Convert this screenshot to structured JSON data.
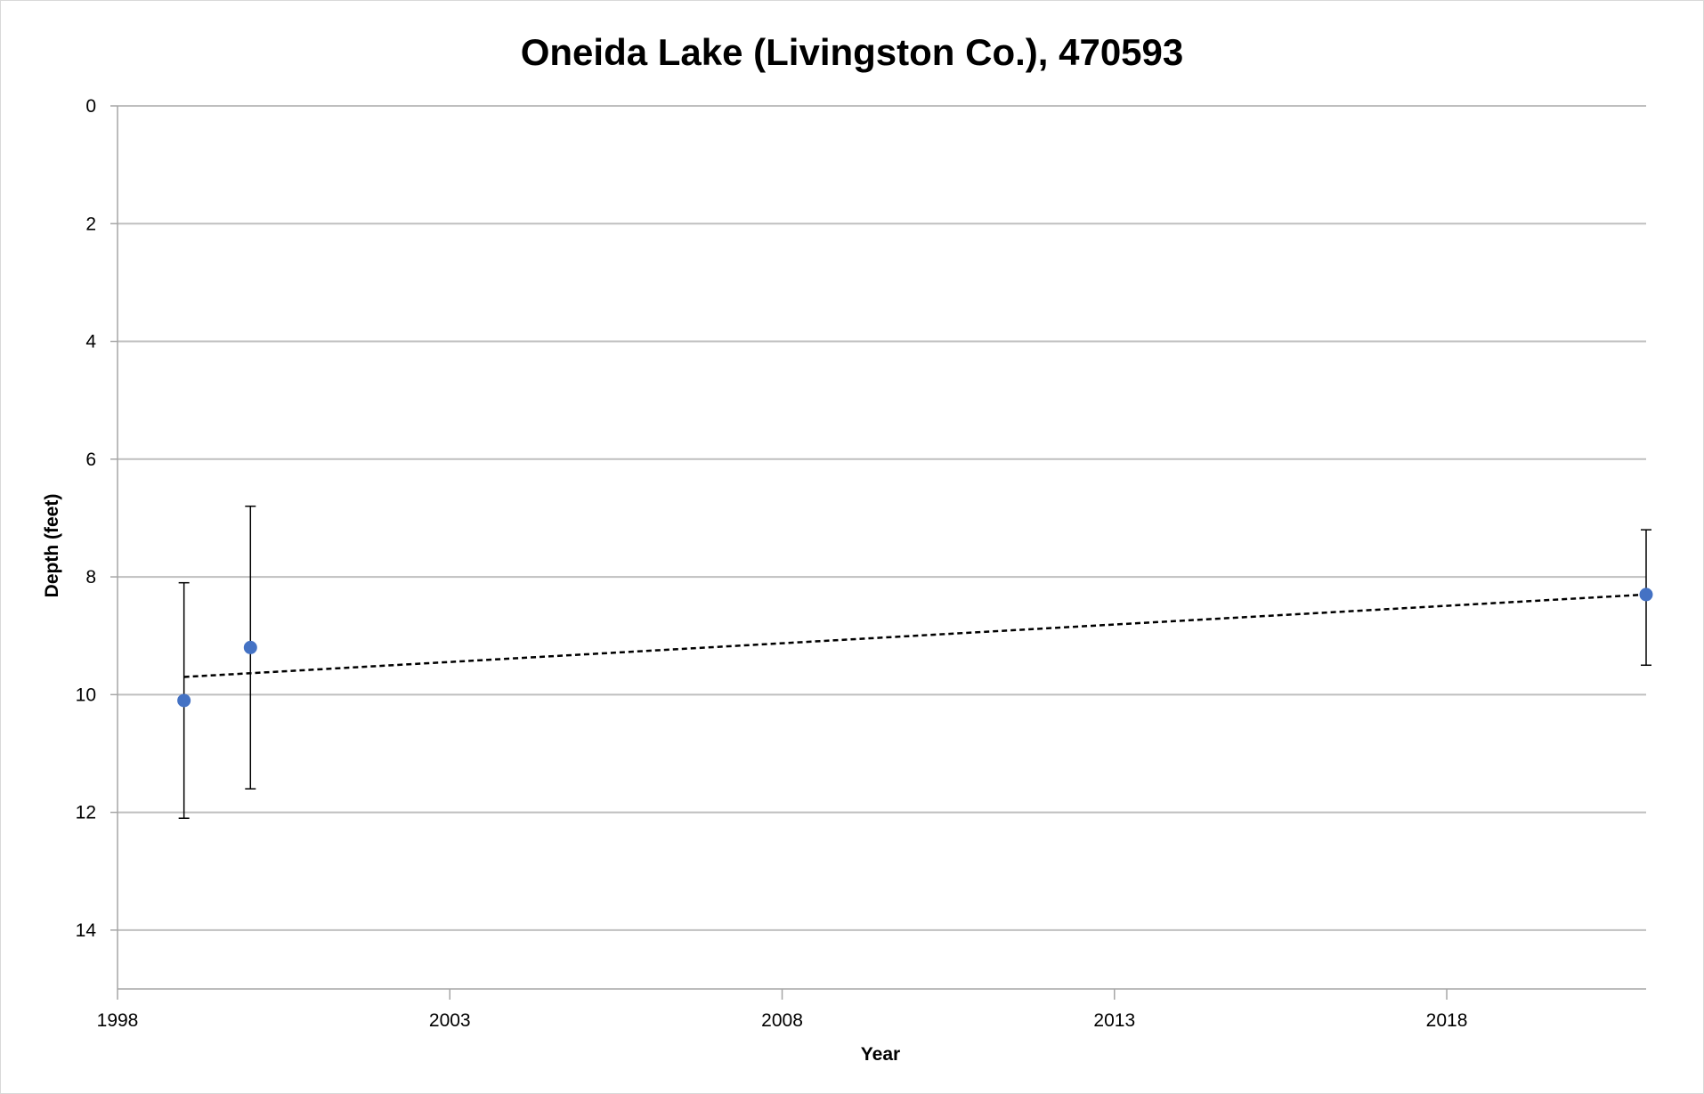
{
  "chart_data": {
    "type": "scatter",
    "title": "Oneida Lake (Livingston Co.), 470593",
    "xlabel": "Year",
    "ylabel": "Depth (feet)",
    "xlim": [
      1998,
      2021
    ],
    "ylim": [
      0,
      15
    ],
    "y_inverted": true,
    "x_ticks": [
      1998,
      2003,
      2008,
      2013,
      2018
    ],
    "y_ticks": [
      0,
      2,
      4,
      6,
      8,
      10,
      12,
      14
    ],
    "grid": true,
    "legend": "none",
    "marker_color": "#4472c4",
    "series": [
      {
        "x": [
          1999,
          2000,
          2021
        ],
        "y": [
          10.1,
          9.2,
          8.3
        ],
        "error_low": [
          8.1,
          6.8,
          7.2
        ],
        "error_high": [
          12.1,
          11.6,
          9.5
        ]
      }
    ],
    "trendline": {
      "style": "dashed",
      "color": "#000000",
      "x": [
        1999,
        2021
      ],
      "y": [
        9.7,
        8.3
      ]
    }
  }
}
